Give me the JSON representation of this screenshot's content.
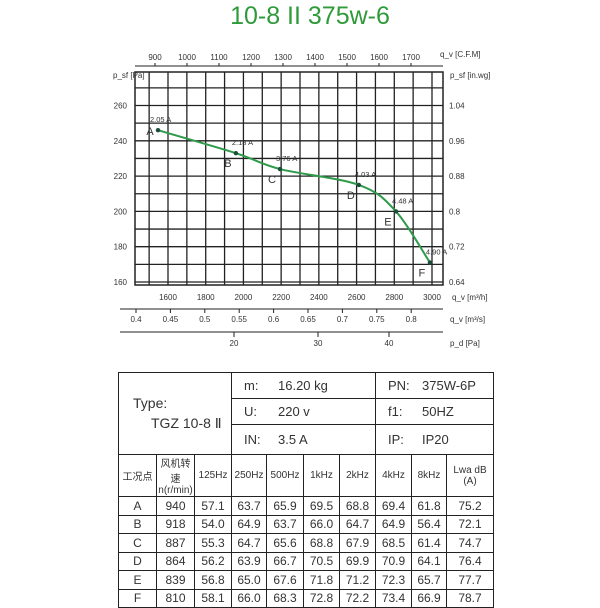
{
  "title": "10-8 II 375w-6",
  "chart_data": {
    "type": "line",
    "x_axis": {
      "label": "q_v [m³/h]",
      "range": [
        1425,
        3058
      ],
      "ticks": [
        1600,
        1800,
        2000,
        2200,
        2400,
        2600,
        2800,
        3000
      ]
    },
    "y_axis": {
      "label": "p_sf [Pa]",
      "range": [
        160,
        278
      ],
      "ticks": [
        160,
        180,
        200,
        220,
        240,
        260
      ]
    },
    "y2_axis": {
      "label": "p_sf [in.wg]",
      "ticks": [
        0.64,
        0.72,
        0.8,
        0.88,
        0.96,
        1.04
      ]
    },
    "x2_axis_top": {
      "label": "q_v [C.F.M]",
      "ticks": [
        900,
        1000,
        1100,
        1200,
        1300,
        1400,
        1500,
        1600,
        1700
      ]
    },
    "x3_axis": {
      "label": "q_v [m³/s]",
      "ticks": [
        0.4,
        0.45,
        0.5,
        0.55,
        0.6,
        0.65,
        0.7,
        0.75,
        0.8
      ]
    },
    "x4_axis": {
      "label": "p_d [Pa]",
      "ticks": [
        20,
        30,
        40
      ]
    },
    "grid": true,
    "series": [
      {
        "color": "#2e9a4a",
        "points": [
          {
            "label": "A",
            "x": 1547,
            "y": 246,
            "current": "2.05 A"
          },
          {
            "label": "B",
            "x": 1960,
            "y": 233,
            "current": "2.18 A"
          },
          {
            "label": "C",
            "x": 2194,
            "y": 224,
            "current": "3.76 A"
          },
          {
            "label": "D",
            "x": 2612,
            "y": 215,
            "current": "4.03 A"
          },
          {
            "label": "E",
            "x": 2809,
            "y": 200,
            "current": "4.48 A"
          },
          {
            "label": "F",
            "x": 2989,
            "y": 171,
            "current": "4.90 A"
          }
        ]
      }
    ]
  },
  "specs": {
    "type_label": "Type:",
    "type_value": "TGZ 10-8 Ⅱ",
    "m_label": "m:",
    "m_value": "16.20 kg",
    "u_label": "U:",
    "u_value": "220 v",
    "i_label": "IN:",
    "i_value": "3.5 A",
    "p_label": "PN:",
    "p_value": "375W-6P",
    "f_label": "f1:",
    "f_value": "50HZ",
    "ip_label": "IP:",
    "ip_value": "IP20"
  },
  "noise_table": {
    "headers": [
      "工况点",
      "风机转速 n(r/min)",
      "125Hz",
      "250Hz",
      "500Hz",
      "1kHz",
      "2kHz",
      "4kHz",
      "8kHz",
      "Lwa dB (A)"
    ],
    "rows": [
      [
        "A",
        "940",
        "57.1",
        "63.7",
        "65.9",
        "69.5",
        "68.8",
        "69.4",
        "61.8",
        "75.2"
      ],
      [
        "B",
        "918",
        "54.0",
        "64.9",
        "63.7",
        "66.0",
        "64.7",
        "64.9",
        "56.4",
        "72.1"
      ],
      [
        "C",
        "887",
        "55.3",
        "64.7",
        "65.6",
        "68.8",
        "67.9",
        "68.5",
        "61.4",
        "74.7"
      ],
      [
        "D",
        "864",
        "56.2",
        "63.9",
        "66.7",
        "70.5",
        "69.9",
        "70.9",
        "64.1",
        "76.4"
      ],
      [
        "E",
        "839",
        "56.8",
        "65.0",
        "67.6",
        "71.8",
        "71.2",
        "72.3",
        "65.7",
        "77.7"
      ],
      [
        "F",
        "810",
        "58.1",
        "66.0",
        "68.3",
        "72.8",
        "72.2",
        "73.4",
        "66.9",
        "78.7"
      ]
    ]
  }
}
